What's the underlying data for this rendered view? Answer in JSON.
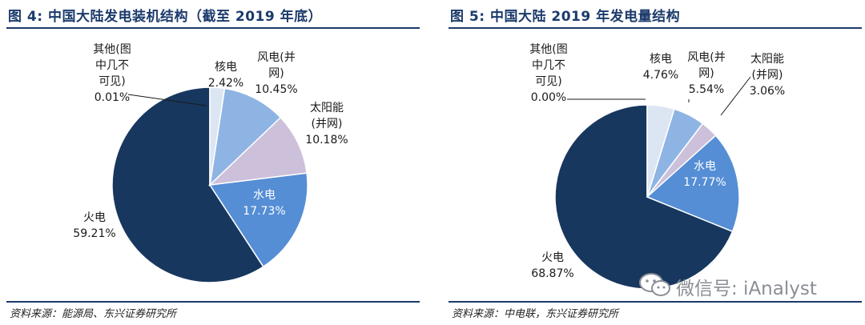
{
  "chart_data": [
    {
      "type": "pie",
      "title": "图 4: 中国大陆发电装机结构（截至 2019 年底）",
      "source": "资料来源：能源局、东兴证券研究所",
      "slices": [
        {
          "name": "核电",
          "value": 2.42,
          "label_lines": [
            "核电"
          ],
          "pct": "2.42%",
          "color": "#dce6f2"
        },
        {
          "name": "风电(并网)",
          "value": 10.45,
          "label_lines": [
            "风电(并",
            "网)"
          ],
          "pct": "10.45%",
          "color": "#8eb4e3"
        },
        {
          "name": "太阳能(并网)",
          "value": 10.18,
          "label_lines": [
            "太阳能",
            "(并网)"
          ],
          "pct": "10.18%",
          "color": "#ccc0da"
        },
        {
          "name": "水电",
          "value": 17.73,
          "label_lines": [
            "水电"
          ],
          "pct": "17.73%",
          "color": "#558ed5"
        },
        {
          "name": "火电",
          "value": 59.21,
          "label_lines": [
            "火电"
          ],
          "pct": "59.21%",
          "color": "#17375e"
        },
        {
          "name": "其他(图中几不可见)",
          "value": 0.01,
          "label_lines": [
            "其他(图",
            "中几不",
            "可见)"
          ],
          "pct": "0.01%",
          "color": "#17375e"
        }
      ]
    },
    {
      "type": "pie",
      "title": "图 5: 中国大陆 2019 年发电量结构",
      "source": "资料来源：中电联，东兴证券研究所",
      "slices": [
        {
          "name": "核电",
          "value": 4.76,
          "label_lines": [
            "核电"
          ],
          "pct": "4.76%",
          "color": "#dce6f2"
        },
        {
          "name": "风电(并网)",
          "value": 5.54,
          "label_lines": [
            "风电(并",
            "网)"
          ],
          "pct": "5.54%",
          "color": "#8eb4e3"
        },
        {
          "name": "太阳能(并网)",
          "value": 3.06,
          "label_lines": [
            "太阳能",
            "(并网)"
          ],
          "pct": "3.06%",
          "color": "#ccc0da"
        },
        {
          "name": "水电",
          "value": 17.77,
          "label_lines": [
            "水电"
          ],
          "pct": "17.77%",
          "color": "#558ed5"
        },
        {
          "name": "火电",
          "value": 68.87,
          "label_lines": [
            "火电"
          ],
          "pct": "68.87%",
          "color": "#17375e"
        },
        {
          "name": "其他(图中几不可见)",
          "value": 0.0,
          "label_lines": [
            "其他(图",
            "中几不",
            "可见)"
          ],
          "pct": "0.00%",
          "color": "#17375e"
        }
      ]
    }
  ],
  "watermark": {
    "text": "微信号: iAnalyst",
    "icon": "wechat-icon"
  }
}
